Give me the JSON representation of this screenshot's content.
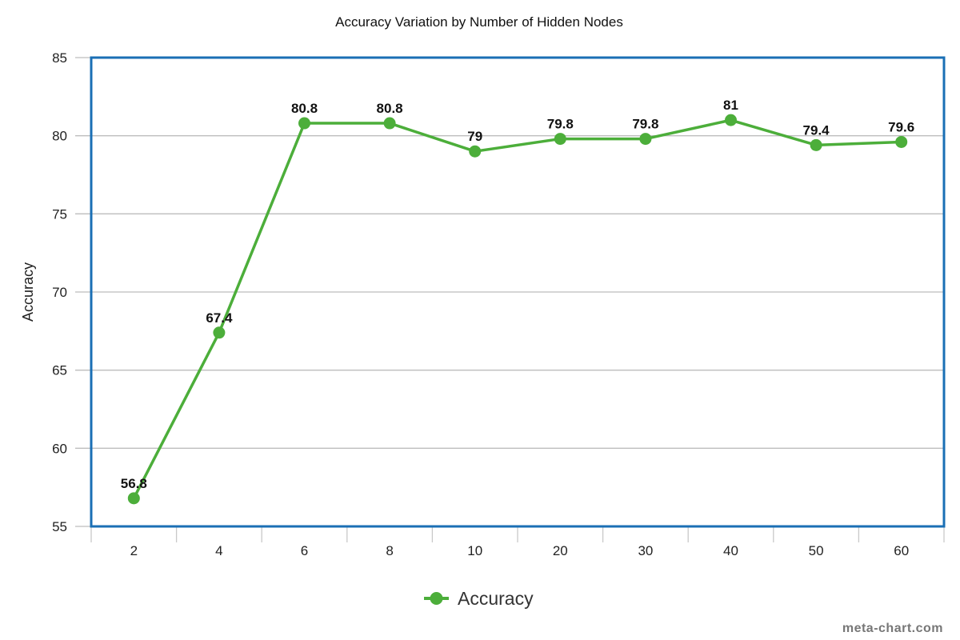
{
  "chart_data": {
    "type": "line",
    "title": "Accuracy Variation by Number of Hidden Nodes",
    "ylabel": "Accuracy",
    "xlabel": "",
    "categories": [
      "2",
      "4",
      "6",
      "8",
      "10",
      "20",
      "30",
      "40",
      "50",
      "60"
    ],
    "series": [
      {
        "name": "Accuracy",
        "values": [
          56.8,
          67.4,
          80.8,
          80.8,
          79,
          79.8,
          79.8,
          81,
          79.4,
          79.6
        ]
      }
    ],
    "data_labels": [
      "56.8",
      "67.4",
      "80.8",
      "80.8",
      "79",
      "79.8",
      "79.8",
      "81",
      "79.4",
      "79.6"
    ],
    "ylim": [
      55,
      85
    ],
    "yticks": [
      "55",
      "60",
      "65",
      "70",
      "75",
      "80",
      "85"
    ],
    "grid": true,
    "legend": "bottom-center",
    "colors": {
      "series": "#4cae3a",
      "frame": "#1a6fb5",
      "grid": "#bdbdbd"
    }
  },
  "watermark": "meta-chart.com"
}
